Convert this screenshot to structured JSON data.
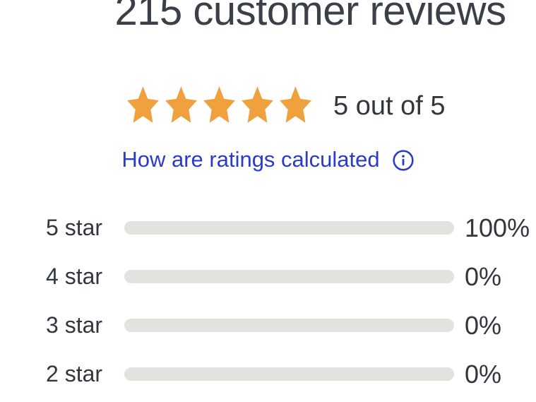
{
  "panel": {
    "heading": "215 customer reviews"
  },
  "rating_summary": {
    "stars_filled": 5,
    "stars_total": 5,
    "score_text": "5 out of 5"
  },
  "ratings_link": {
    "label": "How are ratings calculated",
    "icon": "info-circle-icon"
  },
  "chart_data": {
    "type": "bar",
    "orientation": "horizontal",
    "title": "215 customer reviews",
    "categories": [
      "5 star",
      "4 star",
      "3 star",
      "2 star"
    ],
    "values": [
      100,
      0,
      0,
      0
    ],
    "value_labels": [
      "100%",
      "0%",
      "0%",
      "0%"
    ],
    "xlim": [
      0,
      100
    ]
  },
  "colors": {
    "accent_orange": "#F0A13E",
    "link_blue": "#2B3AC8",
    "text_dark": "#33383F",
    "track_gray": "#E3E2DF"
  }
}
